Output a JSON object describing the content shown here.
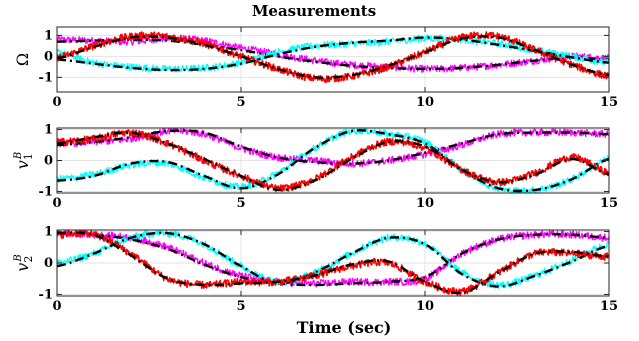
{
  "chart_data": {
    "type": "line",
    "title": "Measurements",
    "xlabel": "Time (sec)",
    "subplots": [
      {
        "ylabel": "Ω",
        "xlim": [
          0,
          15
        ],
        "ylim": [
          -1.7,
          1.4
        ],
        "xticks": [
          0,
          5,
          10,
          15
        ],
        "yticks": [
          -1,
          0,
          1
        ],
        "grid": true,
        "series": [
          {
            "color": "#ff00ff",
            "style": "measured",
            "x": [
              0,
              1,
              2,
              3,
              4,
              5,
              6,
              7,
              8,
              9,
              10,
              11,
              12,
              13,
              14,
              15
            ],
            "y": [
              0.8,
              0.75,
              0.7,
              0.85,
              0.75,
              0.4,
              0.1,
              -0.2,
              -0.4,
              -0.5,
              -0.6,
              -0.55,
              -0.4,
              -0.2,
              0.0,
              -0.1
            ]
          },
          {
            "color": "#000000",
            "style": "true",
            "x": [
              0,
              1,
              2,
              3,
              4,
              5,
              6,
              7,
              8,
              9,
              10,
              11,
              12,
              13,
              14,
              15
            ],
            "y": [
              0.7,
              0.75,
              0.8,
              0.75,
              0.55,
              0.3,
              0.0,
              -0.25,
              -0.45,
              -0.55,
              -0.6,
              -0.55,
              -0.4,
              -0.2,
              -0.05,
              -0.15
            ]
          },
          {
            "color": "#00ffff",
            "style": "measured",
            "x": [
              0,
              1,
              2,
              3,
              4,
              5,
              6,
              7,
              8,
              9,
              10,
              11,
              12,
              13,
              14,
              15
            ],
            "y": [
              0.2,
              -0.3,
              -0.5,
              -0.6,
              -0.55,
              -0.3,
              0.2,
              0.5,
              0.6,
              0.7,
              0.85,
              0.8,
              0.6,
              0.3,
              0.0,
              -0.3
            ]
          },
          {
            "color": "#000000",
            "style": "true",
            "x": [
              0,
              1,
              2,
              3,
              4,
              5,
              6,
              7,
              8,
              9,
              10,
              11,
              12,
              13,
              14,
              15
            ],
            "y": [
              -0.15,
              -0.35,
              -0.55,
              -0.65,
              -0.6,
              -0.35,
              0.1,
              0.45,
              0.65,
              0.75,
              0.9,
              0.8,
              0.55,
              0.25,
              -0.05,
              -0.3
            ]
          },
          {
            "color": "#ff0000",
            "style": "measured",
            "x": [
              0,
              1,
              2,
              3,
              4,
              5,
              6,
              7,
              8,
              9,
              10,
              11,
              12,
              13,
              14,
              15
            ],
            "y": [
              -0.05,
              0.5,
              0.95,
              0.95,
              0.6,
              0.0,
              -0.6,
              -1.05,
              -0.95,
              -0.5,
              0.2,
              0.9,
              0.95,
              0.3,
              -0.4,
              -0.95
            ]
          },
          {
            "color": "#000000",
            "style": "true",
            "x": [
              0,
              1,
              2,
              3,
              4,
              5,
              6,
              7,
              8,
              9,
              10,
              11,
              12,
              13,
              14,
              15
            ],
            "y": [
              -0.1,
              0.45,
              0.9,
              0.9,
              0.55,
              0.0,
              -0.6,
              -1.0,
              -0.9,
              -0.45,
              0.2,
              0.85,
              0.9,
              0.3,
              -0.4,
              -0.9
            ]
          }
        ]
      },
      {
        "ylabel": "v",
        "ylabel_sub": "1",
        "ylabel_sup": "B",
        "xlim": [
          0,
          15
        ],
        "ylim": [
          -1.05,
          1.05
        ],
        "xticks": [
          0,
          5,
          10,
          15
        ],
        "yticks": [
          -1,
          0,
          1
        ],
        "grid": true,
        "series": [
          {
            "color": "#ff00ff",
            "style": "measured",
            "x": [
              0,
              1,
              2,
              3,
              4,
              5,
              6,
              7,
              8,
              9,
              10,
              11,
              12,
              13,
              14,
              15
            ],
            "y": [
              0.55,
              0.6,
              0.7,
              0.95,
              0.85,
              0.4,
              0.1,
              0.0,
              -0.1,
              0.0,
              0.2,
              0.5,
              0.85,
              0.9,
              0.9,
              0.85
            ]
          },
          {
            "color": "#000000",
            "style": "true",
            "x": [
              0,
              1,
              2,
              3,
              4,
              5,
              6,
              7,
              8,
              9,
              10,
              11,
              12,
              13,
              14,
              15
            ],
            "y": [
              0.5,
              0.6,
              0.75,
              0.95,
              0.9,
              0.45,
              0.1,
              -0.05,
              -0.1,
              0.0,
              0.25,
              0.55,
              0.85,
              0.9,
              0.9,
              0.85
            ]
          },
          {
            "color": "#00ffff",
            "style": "measured",
            "x": [
              0,
              1,
              2,
              3,
              4,
              5,
              6,
              7,
              8,
              9,
              10,
              11,
              12,
              13,
              14,
              15
            ],
            "y": [
              -0.6,
              -0.45,
              -0.15,
              -0.1,
              -0.55,
              -0.85,
              -0.4,
              0.4,
              0.95,
              0.85,
              0.6,
              -0.3,
              -0.9,
              -0.95,
              -0.6,
              0.05
            ]
          },
          {
            "color": "#000000",
            "style": "true",
            "x": [
              0,
              1,
              2,
              3,
              4,
              5,
              6,
              7,
              8,
              9,
              10,
              11,
              12,
              13,
              14,
              15
            ],
            "y": [
              -0.65,
              -0.5,
              -0.1,
              -0.05,
              -0.5,
              -0.9,
              -0.45,
              0.4,
              0.95,
              0.85,
              0.55,
              -0.3,
              -0.9,
              -0.95,
              -0.6,
              0.05
            ]
          },
          {
            "color": "#ff0000",
            "style": "measured",
            "x": [
              0,
              1,
              2,
              3,
              4,
              5,
              6,
              7,
              8,
              9,
              10,
              11,
              12,
              13,
              14,
              15
            ],
            "y": [
              0.6,
              0.7,
              0.9,
              0.55,
              0.0,
              -0.5,
              -0.9,
              -0.6,
              0.1,
              0.6,
              0.4,
              -0.3,
              -0.7,
              -0.4,
              0.1,
              -0.4
            ]
          },
          {
            "color": "#000000",
            "style": "true",
            "x": [
              0,
              1,
              2,
              3,
              4,
              5,
              6,
              7,
              8,
              9,
              10,
              11,
              12,
              13,
              14,
              15
            ],
            "y": [
              0.55,
              0.75,
              0.9,
              0.55,
              0.05,
              -0.5,
              -0.95,
              -0.65,
              0.05,
              0.6,
              0.45,
              -0.3,
              -0.7,
              -0.45,
              0.05,
              -0.45
            ]
          }
        ]
      },
      {
        "ylabel": "v",
        "ylabel_sub": "2",
        "ylabel_sup": "B",
        "xlim": [
          0,
          15
        ],
        "ylim": [
          -1.05,
          1.05
        ],
        "xticks": [
          0,
          5,
          10,
          15
        ],
        "yticks": [
          -1,
          0,
          1
        ],
        "grid": true,
        "series": [
          {
            "color": "#ff00ff",
            "style": "measured",
            "x": [
              0,
              1,
              2,
              3,
              4,
              5,
              6,
              7,
              8,
              9,
              10,
              11,
              12,
              13,
              14,
              15
            ],
            "y": [
              0.95,
              0.9,
              0.8,
              0.5,
              0.0,
              -0.4,
              -0.6,
              -0.65,
              -0.6,
              -0.6,
              -0.5,
              0.3,
              0.75,
              0.9,
              0.9,
              0.8
            ]
          },
          {
            "color": "#000000",
            "style": "true",
            "x": [
              0,
              1,
              2,
              3,
              4,
              5,
              6,
              7,
              8,
              9,
              10,
              11,
              12,
              13,
              14,
              15
            ],
            "y": [
              0.95,
              0.9,
              0.75,
              0.45,
              -0.05,
              -0.45,
              -0.65,
              -0.7,
              -0.65,
              -0.6,
              -0.45,
              0.3,
              0.75,
              0.9,
              0.9,
              0.8
            ]
          },
          {
            "color": "#00ffff",
            "style": "measured",
            "x": [
              0,
              1,
              2,
              3,
              4,
              5,
              6,
              7,
              8,
              9,
              10,
              11,
              12,
              13,
              14,
              15
            ],
            "y": [
              0.0,
              0.3,
              0.8,
              0.95,
              0.6,
              -0.1,
              -0.6,
              -0.3,
              0.3,
              0.8,
              0.6,
              -0.3,
              -0.7,
              -0.4,
              0.1,
              0.6
            ]
          },
          {
            "color": "#000000",
            "style": "true",
            "x": [
              0,
              1,
              2,
              3,
              4,
              5,
              6,
              7,
              8,
              9,
              10,
              11,
              12,
              13,
              14,
              15
            ],
            "y": [
              -0.1,
              0.3,
              0.8,
              0.95,
              0.6,
              -0.1,
              -0.65,
              -0.3,
              0.3,
              0.8,
              0.6,
              -0.35,
              -0.75,
              -0.4,
              0.05,
              0.55
            ]
          },
          {
            "color": "#ff0000",
            "style": "measured",
            "x": [
              0,
              1,
              2,
              3,
              4,
              5,
              6,
              7,
              8,
              9,
              10,
              11,
              12,
              13,
              14,
              15
            ],
            "y": [
              0.9,
              0.9,
              0.3,
              -0.5,
              -0.7,
              -0.6,
              -0.6,
              -0.4,
              -0.1,
              0.0,
              -0.6,
              -0.9,
              -0.3,
              0.3,
              0.3,
              0.2
            ]
          },
          {
            "color": "#000000",
            "style": "true",
            "x": [
              0,
              1,
              2,
              3,
              4,
              5,
              6,
              7,
              8,
              9,
              10,
              11,
              12,
              13,
              14,
              15
            ],
            "y": [
              0.95,
              0.9,
              0.25,
              -0.5,
              -0.7,
              -0.65,
              -0.6,
              -0.4,
              -0.05,
              0.05,
              -0.6,
              -0.95,
              -0.3,
              0.3,
              0.35,
              0.2
            ]
          }
        ]
      }
    ]
  }
}
